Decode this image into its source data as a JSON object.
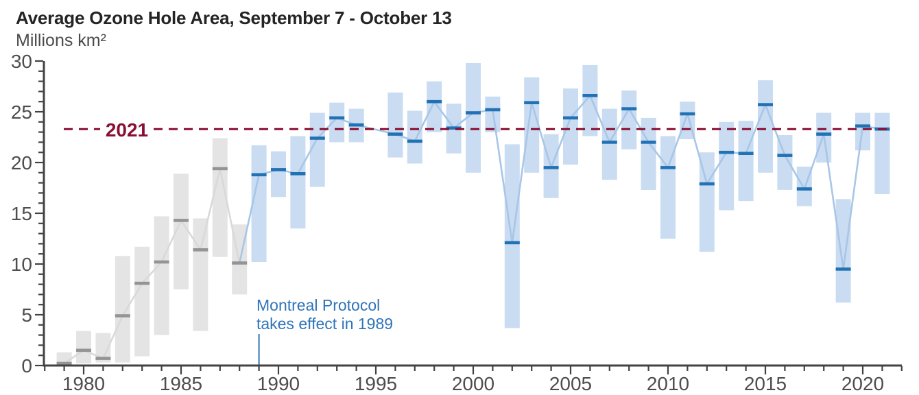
{
  "header": {
    "title": "Average Ozone Hole Area, September 7 - October 13",
    "subtitle": "Millions km²"
  },
  "annotations": {
    "threshold_label": "2021",
    "montreal_protocol": {
      "line1": "Montreal Protocol",
      "line2": "takes effect in 1989",
      "year": 1989
    }
  },
  "colors": {
    "background": "#ffffff",
    "title_text": "#242424",
    "subtitle_text": "#4b4b4b",
    "axis": "#424242",
    "tick_label": "#4d4d4d",
    "pre_bar": "#e4e4e4",
    "pre_mean": "#949494",
    "pre_line": "#d9d9d9",
    "post_bar": "#c9dcf1",
    "post_mean": "#2171b5",
    "post_line": "#a7c6e8",
    "threshold": "#8a0f33",
    "annotation_blue": "#2f74b8"
  },
  "chart_data": {
    "type": "bar",
    "subtype": "range-bars-with-mean-markers",
    "title": "Average Ozone Hole Area, September 7 - October 13",
    "xlabel": "",
    "ylabel": "Millions km²",
    "ylim": [
      0,
      30
    ],
    "y_major_ticks": [
      0,
      5,
      10,
      15,
      20,
      25,
      30
    ],
    "y_minor_step": 1,
    "x_major_ticks": [
      1980,
      1985,
      1990,
      1995,
      2000,
      2005,
      2010,
      2015,
      2020
    ],
    "x_tick_range": [
      1978,
      2022
    ],
    "grid": false,
    "legend": "none",
    "gray_until_year": 1988,
    "missing_years": [
      1995
    ],
    "threshold_line": {
      "value": 23.3,
      "label": "2021"
    },
    "points": [
      {
        "year": 1979,
        "min": 0.1,
        "max": 1.3,
        "mean": 0.2
      },
      {
        "year": 1980,
        "min": 0.2,
        "max": 3.4,
        "mean": 1.5
      },
      {
        "year": 1981,
        "min": 0.3,
        "max": 3.2,
        "mean": 0.7
      },
      {
        "year": 1982,
        "min": 0.3,
        "max": 10.8,
        "mean": 4.9
      },
      {
        "year": 1983,
        "min": 0.9,
        "max": 11.7,
        "mean": 8.1
      },
      {
        "year": 1984,
        "min": 3.0,
        "max": 14.7,
        "mean": 10.2
      },
      {
        "year": 1985,
        "min": 7.5,
        "max": 18.9,
        "mean": 14.3
      },
      {
        "year": 1986,
        "min": 3.4,
        "max": 14.5,
        "mean": 11.4
      },
      {
        "year": 1987,
        "min": 10.7,
        "max": 22.4,
        "mean": 19.4
      },
      {
        "year": 1988,
        "min": 7.0,
        "max": 13.9,
        "mean": 10.1
      },
      {
        "year": 1989,
        "min": 10.2,
        "max": 21.7,
        "mean": 18.8
      },
      {
        "year": 1990,
        "min": 16.6,
        "max": 21.1,
        "mean": 19.3
      },
      {
        "year": 1991,
        "min": 13.5,
        "max": 22.6,
        "mean": 18.9
      },
      {
        "year": 1992,
        "min": 17.6,
        "max": 24.9,
        "mean": 22.4
      },
      {
        "year": 1993,
        "min": 22.0,
        "max": 25.9,
        "mean": 24.4
      },
      {
        "year": 1994,
        "min": 22.0,
        "max": 25.3,
        "mean": 23.7
      },
      {
        "year": 1996,
        "min": 20.5,
        "max": 26.9,
        "mean": 22.8
      },
      {
        "year": 1997,
        "min": 19.9,
        "max": 25.1,
        "mean": 22.1
      },
      {
        "year": 1998,
        "min": 23.0,
        "max": 28.0,
        "mean": 26.0
      },
      {
        "year": 1999,
        "min": 20.9,
        "max": 25.8,
        "mean": 23.4
      },
      {
        "year": 2000,
        "min": 19.0,
        "max": 29.8,
        "mean": 24.9
      },
      {
        "year": 2001,
        "min": 23.0,
        "max": 26.5,
        "mean": 25.2
      },
      {
        "year": 2002,
        "min": 3.7,
        "max": 21.8,
        "mean": 12.1
      },
      {
        "year": 2003,
        "min": 19.0,
        "max": 28.4,
        "mean": 25.9
      },
      {
        "year": 2004,
        "min": 16.5,
        "max": 22.8,
        "mean": 19.5
      },
      {
        "year": 2005,
        "min": 19.8,
        "max": 27.3,
        "mean": 24.4
      },
      {
        "year": 2006,
        "min": 22.6,
        "max": 29.6,
        "mean": 26.6
      },
      {
        "year": 2007,
        "min": 18.3,
        "max": 25.3,
        "mean": 22.0
      },
      {
        "year": 2008,
        "min": 21.3,
        "max": 27.1,
        "mean": 25.3
      },
      {
        "year": 2009,
        "min": 17.3,
        "max": 24.4,
        "mean": 22.0
      },
      {
        "year": 2010,
        "min": 12.5,
        "max": 22.6,
        "mean": 19.5
      },
      {
        "year": 2011,
        "min": 22.3,
        "max": 26.0,
        "mean": 24.8
      },
      {
        "year": 2012,
        "min": 11.2,
        "max": 21.0,
        "mean": 17.9
      },
      {
        "year": 2013,
        "min": 15.3,
        "max": 24.0,
        "mean": 21.0
      },
      {
        "year": 2014,
        "min": 16.2,
        "max": 24.1,
        "mean": 20.9
      },
      {
        "year": 2015,
        "min": 19.0,
        "max": 28.1,
        "mean": 25.7
      },
      {
        "year": 2016,
        "min": 17.3,
        "max": 22.7,
        "mean": 20.7
      },
      {
        "year": 2017,
        "min": 15.7,
        "max": 19.6,
        "mean": 17.4
      },
      {
        "year": 2018,
        "min": 20.0,
        "max": 24.9,
        "mean": 22.8
      },
      {
        "year": 2019,
        "min": 6.2,
        "max": 16.4,
        "mean": 9.5
      },
      {
        "year": 2020,
        "min": 21.2,
        "max": 24.9,
        "mean": 23.6
      },
      {
        "year": 2021,
        "min": 16.9,
        "max": 24.9,
        "mean": 23.3
      }
    ]
  }
}
